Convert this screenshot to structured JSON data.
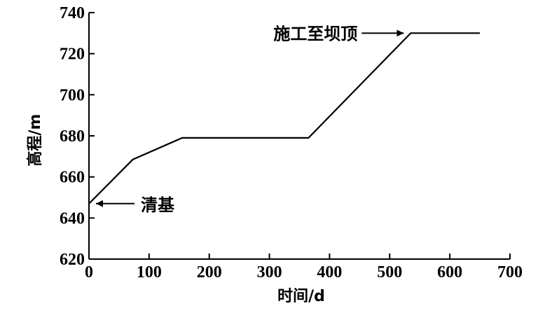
{
  "chart_data": {
    "type": "line",
    "title": "",
    "xlabel": "时间/d",
    "ylabel": "高程/m",
    "xlim": [
      0,
      700
    ],
    "ylim": [
      620,
      740
    ],
    "xticks": [
      0,
      100,
      200,
      300,
      400,
      500,
      600,
      700
    ],
    "yticks": [
      620,
      640,
      660,
      680,
      700,
      720,
      740
    ],
    "grid": false,
    "series": [
      {
        "x": [
          0,
          73,
          155,
          365,
          535,
          650
        ],
        "y": [
          647,
          668.5,
          679,
          679,
          730,
          730
        ]
      }
    ],
    "annotations": [
      {
        "text": "清基",
        "x": 0,
        "y": 647
      },
      {
        "text": "施工至坝顶",
        "x": 535,
        "y": 730
      }
    ],
    "colors": {
      "line": "#000000",
      "axis": "#000000",
      "background": "#ffffff"
    }
  }
}
